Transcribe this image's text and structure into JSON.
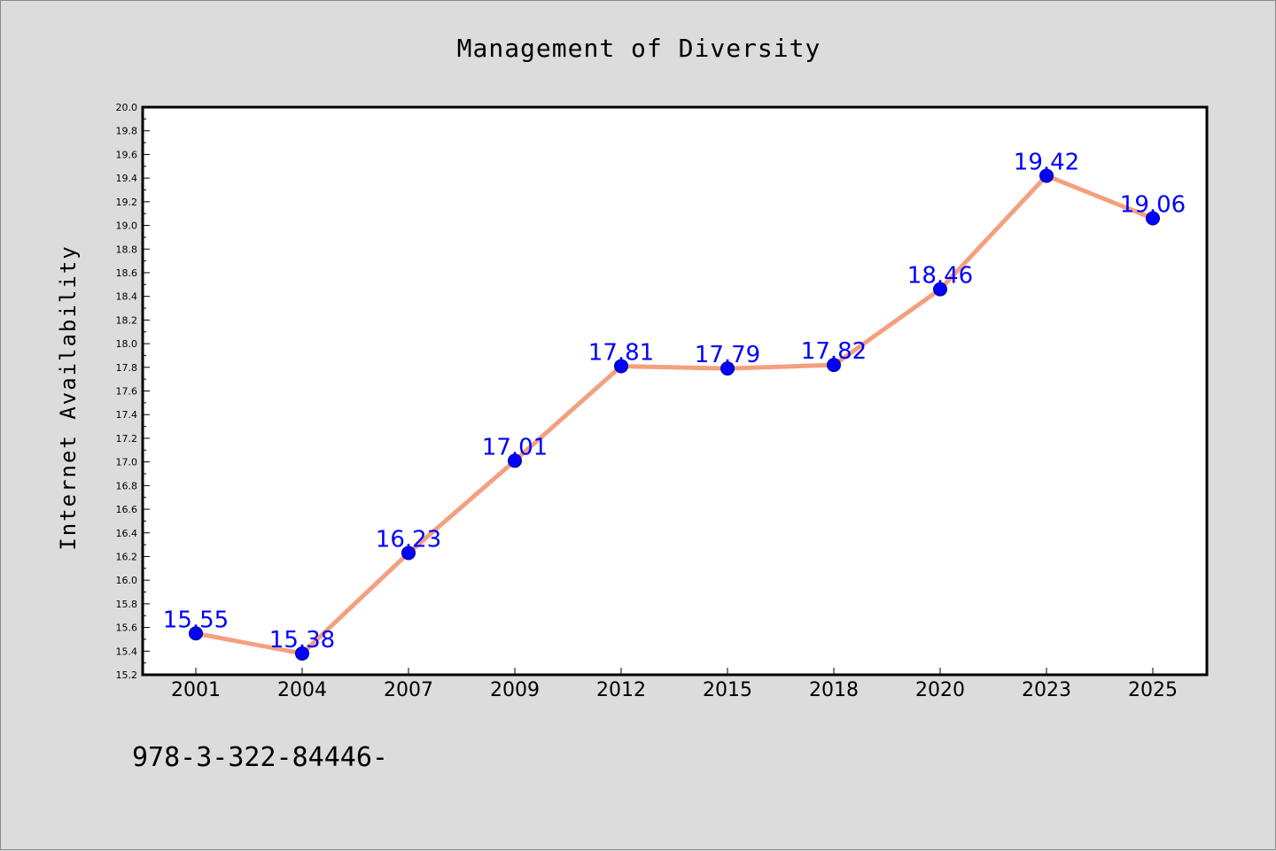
{
  "footer": {
    "text": "978-3-322-84446-"
  },
  "colors": {
    "background": "#dcdcdc",
    "plot_background": "#ffffff",
    "line": "#f4a07f",
    "marker": "#0000ff",
    "data_label": "#0000ff"
  },
  "chart_data": {
    "type": "line",
    "title": "Management of Diversity",
    "xlabel": "",
    "ylabel": "Internet Availability",
    "categories": [
      "2001",
      "2004",
      "2007",
      "2009",
      "2012",
      "2015",
      "2018",
      "2020",
      "2023",
      "2025"
    ],
    "series": [
      {
        "values": [
          15.55,
          15.38,
          16.23,
          17.01,
          17.81,
          17.79,
          17.82,
          18.46,
          19.42,
          19.06
        ],
        "value_labels": [
          "15.55",
          "15.38",
          "16.23",
          "17.01",
          "17.81",
          "17.79",
          "17.82",
          "18.46",
          "19.42",
          "19.06"
        ]
      }
    ],
    "ylim": [
      15.2,
      20.0
    ],
    "yticks": [
      "15.2",
      "15.4",
      "15.6",
      "15.8",
      "16.0",
      "16.2",
      "16.4",
      "16.6",
      "16.8",
      "17.0",
      "17.2",
      "17.4",
      "17.6",
      "17.8",
      "18.0",
      "18.2",
      "18.4",
      "18.6",
      "18.8",
      "19.0",
      "19.2",
      "19.4",
      "19.6",
      "19.8",
      "20.0"
    ],
    "grid": false,
    "legend": "none",
    "markers": true,
    "data_labels": true
  }
}
